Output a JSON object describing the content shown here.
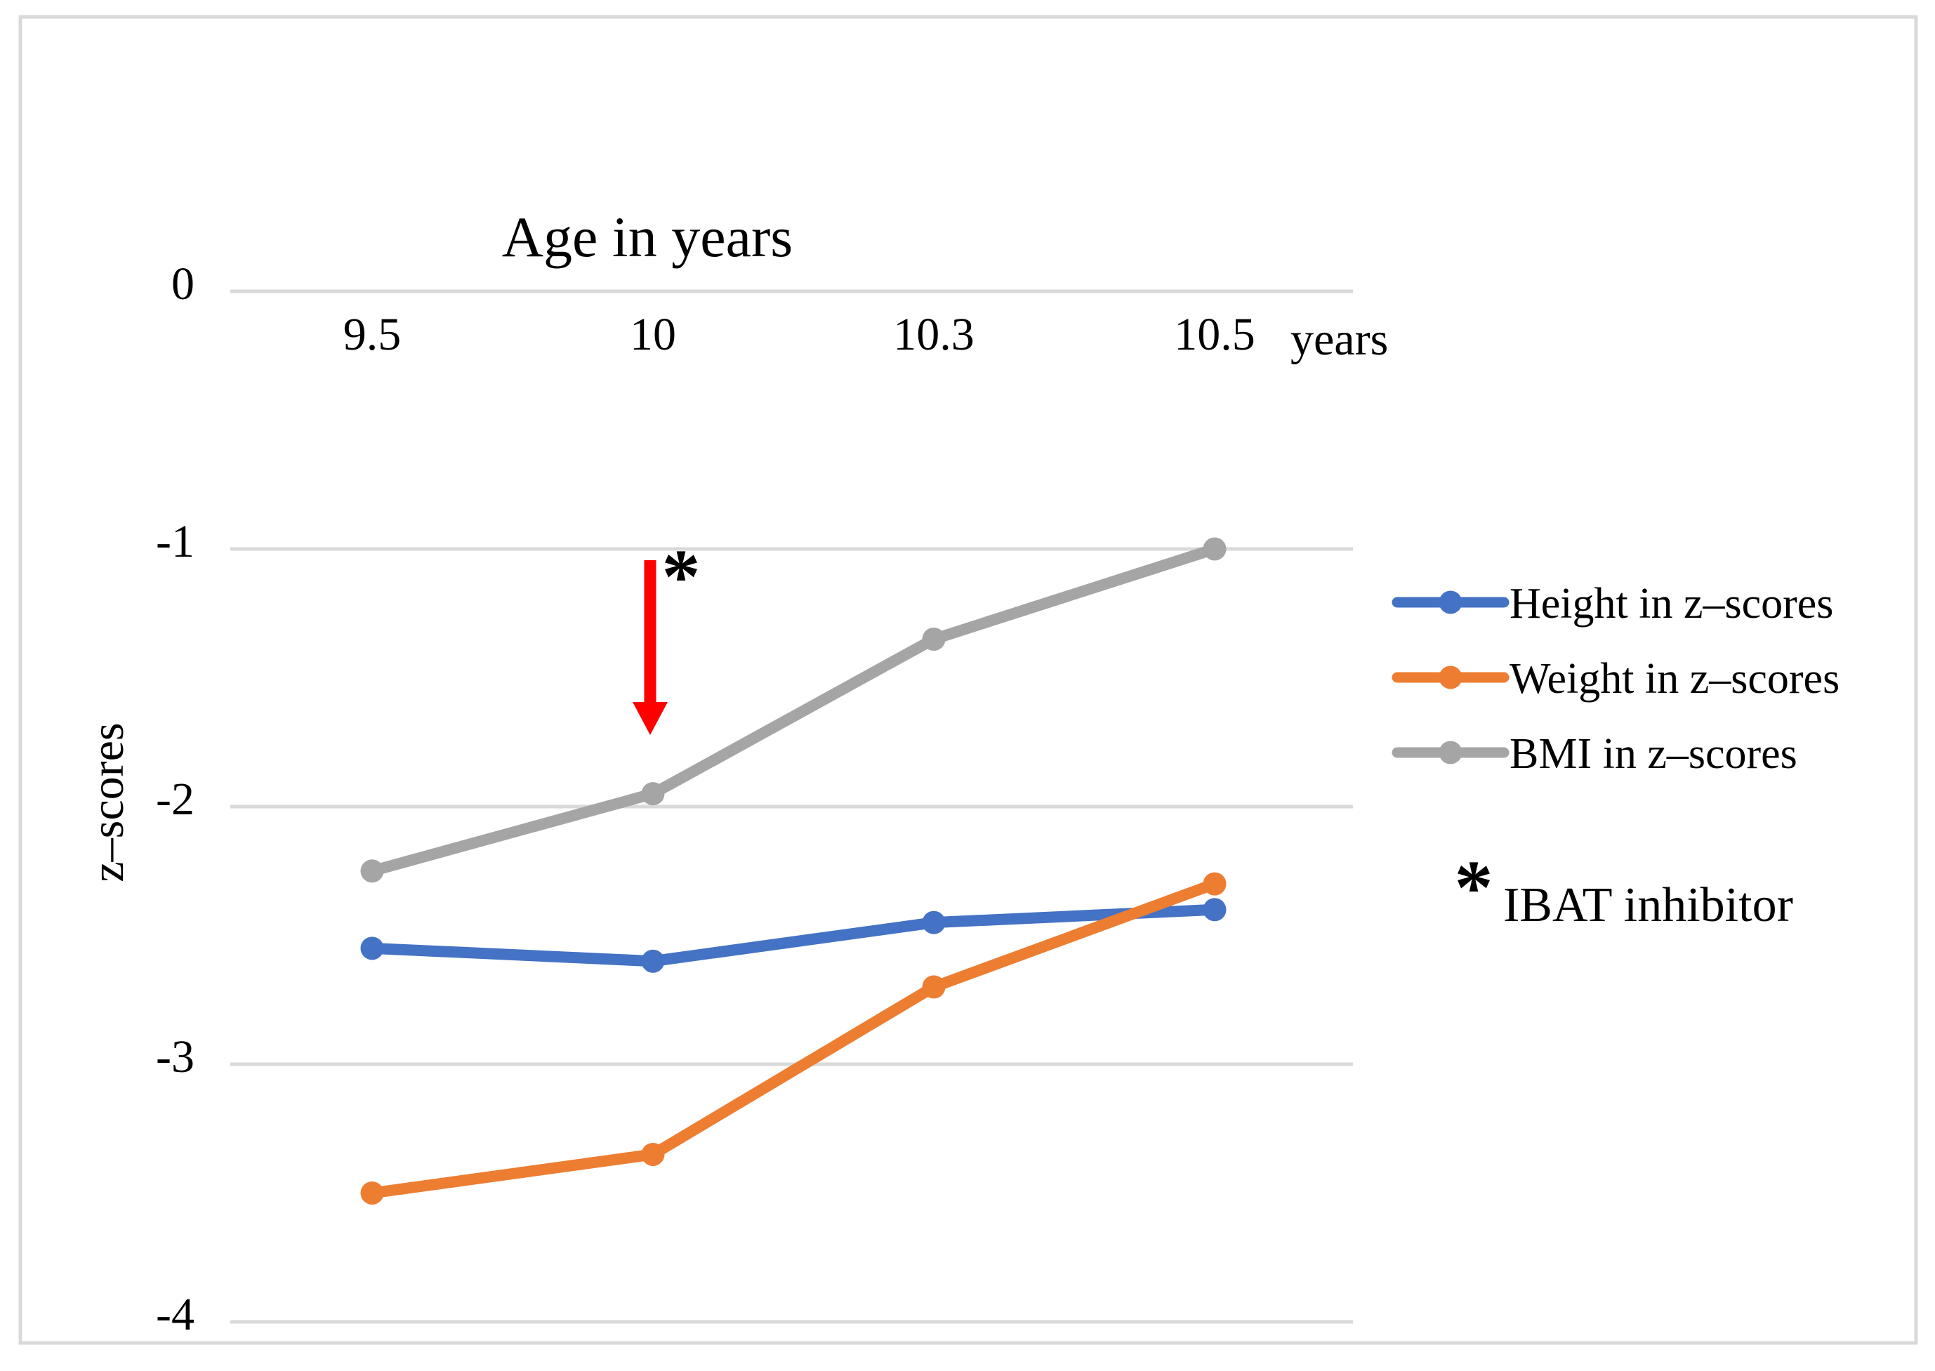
{
  "chart_data": {
    "type": "line",
    "title": "Age in years",
    "x_axis": {
      "tick_labels": [
        "9.5",
        "10",
        "10.3",
        "10.5"
      ],
      "unit_label": "years"
    },
    "y_axis": {
      "label": "z–scores",
      "tick_labels": [
        "0",
        "-1",
        "-2",
        "-3",
        "-4"
      ],
      "tick_values": [
        0,
        -1,
        -2,
        -3,
        -4
      ],
      "range": [
        -4,
        0
      ]
    },
    "categories": [
      9.5,
      10,
      10.3,
      10.5
    ],
    "series": [
      {
        "name": "Height in z–scores",
        "color": "#4472C4",
        "values": [
          -2.55,
          -2.6,
          -2.45,
          -2.4
        ]
      },
      {
        "name": "Weight in z–scores",
        "color": "#ED7D31",
        "values": [
          -3.5,
          -3.35,
          -2.7,
          -2.3
        ]
      },
      {
        "name": "BMI in z–scores",
        "color": "#A5A5A5",
        "values": [
          -2.25,
          -1.95,
          -1.35,
          -1.0
        ]
      }
    ],
    "grid": true,
    "legend_position": "right",
    "annotation": {
      "asterisk": "*",
      "arrow_category_label": "10",
      "arrow_color": "#FF0000",
      "legend_note_marker": "*",
      "legend_note_text": "IBAT inhibitor"
    },
    "colors": {
      "gridline": "#D9D9D9",
      "frame_border": "#D9D9D9",
      "text": "#000000"
    }
  }
}
